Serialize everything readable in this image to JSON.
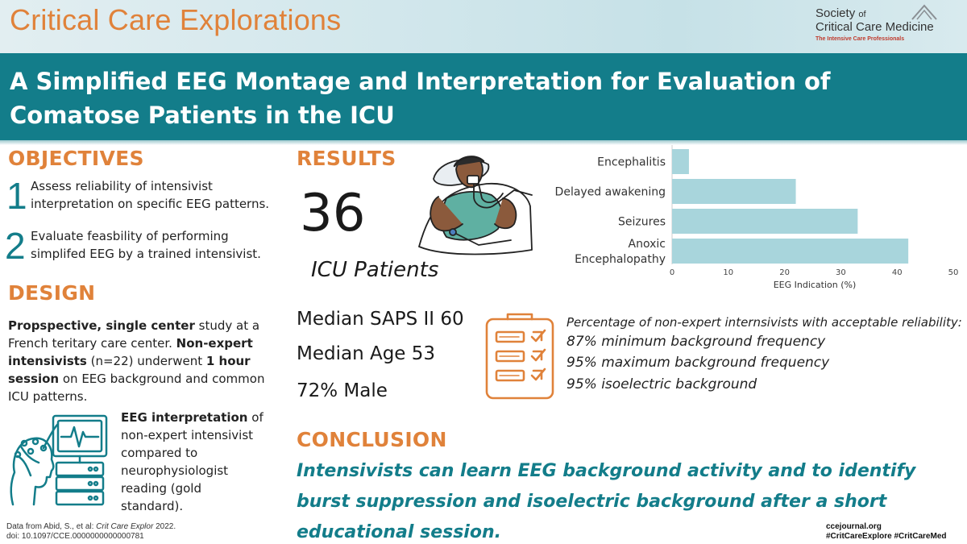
{
  "header": {
    "journal": "Critical Care Explorations",
    "society_line1": "Society",
    "society_of": "of",
    "society_line2": "Critical Care Medicine",
    "society_tagline": "The Intensive Care Professionals",
    "title": "A Simplified EEG Montage and Interpretation for Evaluation of Comatose Patients in the ICU"
  },
  "objectives": {
    "heading": "OBJECTIVES",
    "items": [
      {
        "num": "1",
        "text": "Assess reliability of intensivist interpretation on specific EEG patterns."
      },
      {
        "num": "2",
        "text": "Evaluate feasbility of performing simplifed EEG by a trained intensivist."
      }
    ]
  },
  "design": {
    "heading": "DESIGN",
    "p1_b1": "Propspective, single center",
    "p1_t1": " study at a French teritary care center. ",
    "p1_b2": "Non-expert intensivists",
    "p1_t2": " (n=22) underwent ",
    "p1_b3": "1 hour session",
    "p1_t3": " on EEG background and common ICU patterns.",
    "p2_b1": "EEG interpretation",
    "p2_t1": " of non-expert intensivist compared to neurophysiologist reading (gold standard)."
  },
  "results": {
    "heading": "RESULTS",
    "patients_count": "36",
    "patients_label": "ICU Patients",
    "stats": [
      "Median SAPS II 60",
      "Median Age 53",
      "72% Male"
    ],
    "reliability_intro": "Percentage of non-expert internsivists with acceptable reliability:",
    "reliability_items": [
      "87% minimum background frequency",
      "95% maximum background frequency",
      "95% isoelectric background"
    ]
  },
  "conclusion": {
    "heading": "CONCLUSION",
    "text": "Intensivists can learn EEG background activity and to identify burst suppression and isoelectric background after a short educational session."
  },
  "footer": {
    "citation_prefix": "Data from  Abid, S., et al: ",
    "citation_journal": "Crit Care Explor",
    "citation_year": " 2022.",
    "doi": "doi: 10.1097/CCE.0000000000000781",
    "site": "ccejournal.org",
    "hashtags": "#CritCareExplore #CritCareMed"
  },
  "colors": {
    "accent_orange": "#e0823a",
    "teal": "#137d8a",
    "bar": "#a8d5dc"
  },
  "icons": [
    "sccm-logo-icon",
    "ventilated-patient-icon",
    "checklist-icon",
    "eeg-monitor-icon"
  ],
  "chart_data": {
    "type": "bar",
    "orientation": "horizontal",
    "categories": [
      "Encephalitis",
      "Delayed awakening",
      "Seizures",
      "Anoxic Encephalopathy"
    ],
    "category_lines": [
      [
        "Encephalitis"
      ],
      [
        "Delayed awakening"
      ],
      [
        "Seizures"
      ],
      [
        "Anoxic",
        "Encephalopathy"
      ]
    ],
    "values": [
      3,
      22,
      33,
      42
    ],
    "xlabel": "EEG Indication (%)",
    "xlim": [
      0,
      50
    ],
    "xticks": [
      "0",
      "10",
      "20",
      "30",
      "40",
      "50"
    ],
    "grid": false,
    "legend": "none"
  }
}
